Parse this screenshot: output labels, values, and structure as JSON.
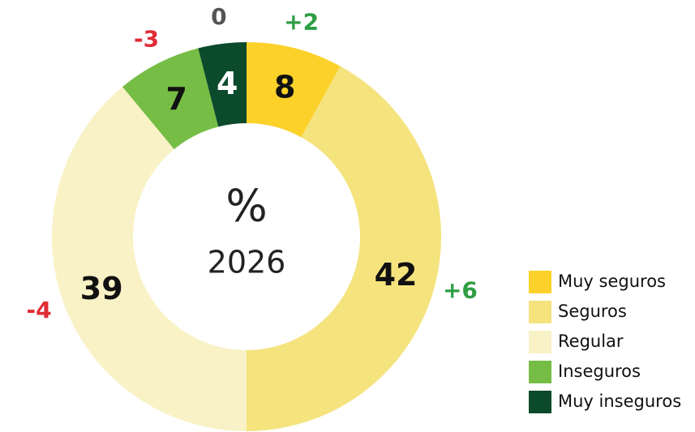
{
  "chart_data": {
    "type": "donut",
    "center_symbol": "%",
    "center_label": "2026",
    "categories": [
      "Muy seguros",
      "Seguros",
      "Regular",
      "Inseguros",
      "Muy inseguros"
    ],
    "values": [
      8,
      42,
      39,
      7,
      4
    ],
    "colors": [
      "#fcd12a",
      "#f5e37e",
      "#f8f2c6",
      "#76bd45",
      "#0b4a2b"
    ],
    "changes": [
      2,
      6,
      -4,
      -3,
      0
    ],
    "change_labels": [
      "+2",
      "+6",
      "-4",
      "-3",
      "0"
    ],
    "legend": "right"
  }
}
